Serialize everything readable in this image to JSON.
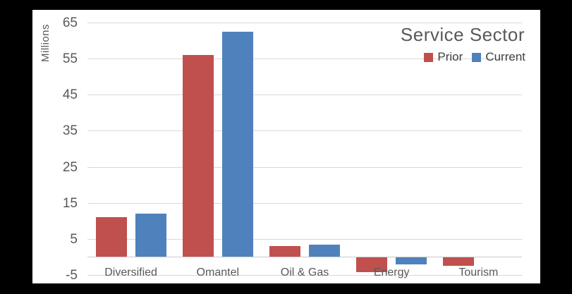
{
  "frame": {
    "background_color": "#000000",
    "panel_color": "#ffffff"
  },
  "chart_data": {
    "type": "bar",
    "title": "Service Sector",
    "ylabel": "Millions",
    "xlabel": "",
    "categories": [
      "Diversified",
      "Omantel",
      "Oil & Gas",
      "Energy",
      "Tourism"
    ],
    "series": [
      {
        "name": "Prior",
        "color": "#c0504d",
        "values": [
          11,
          56,
          3,
          -4,
          -2.2
        ]
      },
      {
        "name": "Current",
        "color": "#4f81bd",
        "values": [
          12,
          62.5,
          3.5,
          -1.8,
          0
        ]
      }
    ],
    "ylim": [
      -5,
      65
    ],
    "yticks": [
      65,
      55,
      45,
      35,
      25,
      15,
      5,
      -5
    ],
    "grid": true,
    "legend_position": "top-right",
    "gridline_color": "#d9d9d9",
    "zero_line_color": "#c9c9c9",
    "axis_text_color": "#595959",
    "title_color": "#595959",
    "legend_text_color": "#404040"
  }
}
